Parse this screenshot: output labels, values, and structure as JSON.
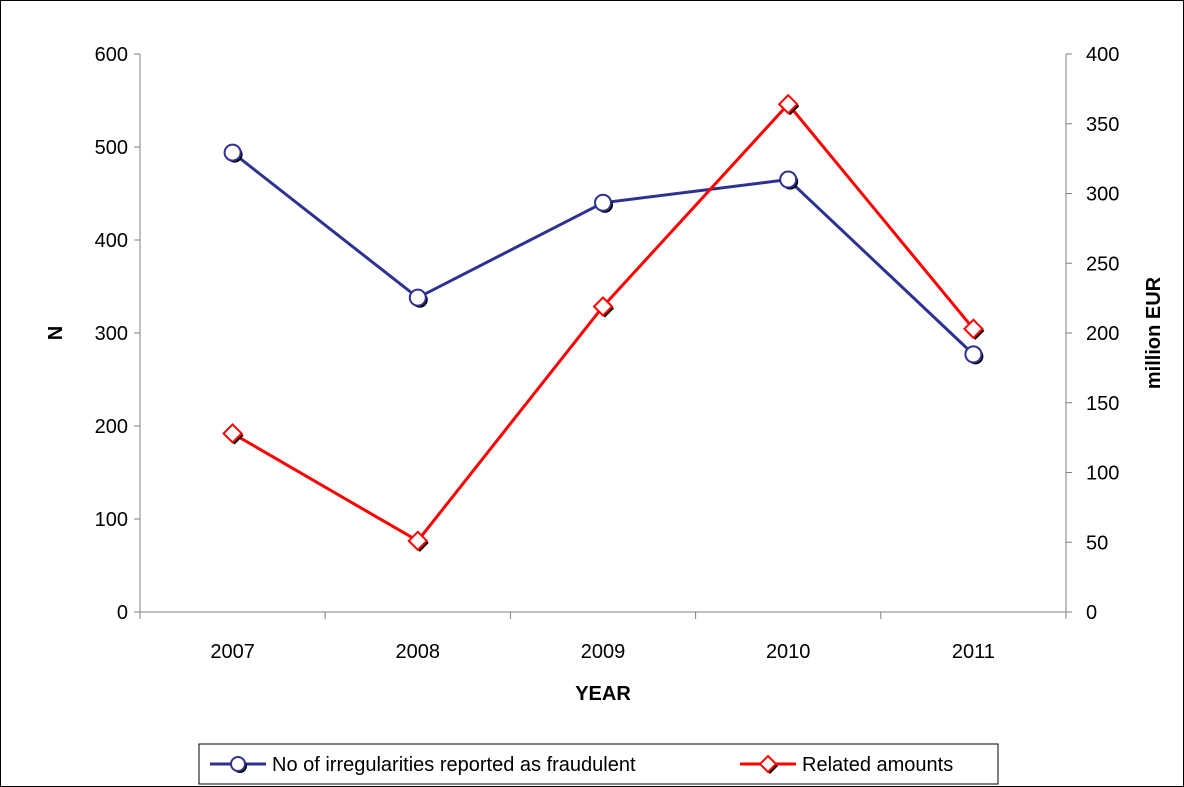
{
  "chart_data": {
    "type": "line",
    "categories": [
      "2007",
      "2008",
      "2009",
      "2010",
      "2011"
    ],
    "xlabel": "YEAR",
    "ylabel_left": "N",
    "ylabel_right": "million EUR",
    "ylim_left": [
      0,
      600
    ],
    "ylim_right": [
      0,
      400
    ],
    "yticks_left": [
      0,
      100,
      200,
      300,
      400,
      500,
      600
    ],
    "yticks_right": [
      0,
      50,
      100,
      150,
      200,
      250,
      300,
      350,
      400
    ],
    "grid": false,
    "legend_position": "bottom",
    "series": [
      {
        "name": "No of irregularities reported as fraudulent",
        "axis": "left",
        "values": [
          494,
          338,
          440,
          465,
          277
        ],
        "color": "#2e3192",
        "marker": "circle"
      },
      {
        "name": "Related amounts",
        "axis": "right",
        "values": [
          128,
          51,
          219,
          364,
          203
        ],
        "color": "#ff0000",
        "marker": "diamond"
      }
    ]
  }
}
